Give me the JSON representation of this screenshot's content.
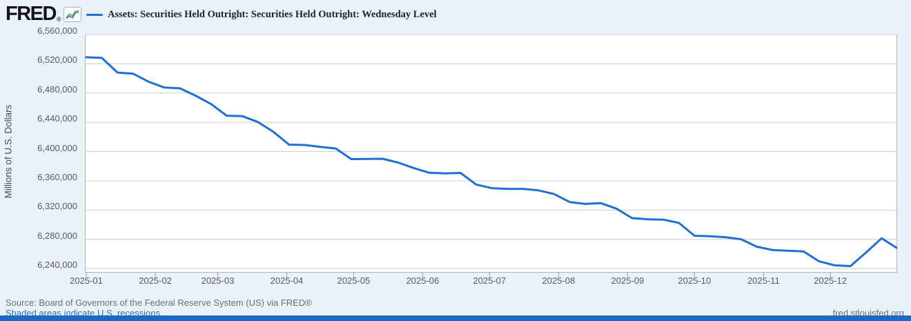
{
  "header": {
    "logo_text": "FRED",
    "logo_reg": "®",
    "legend_label": "Assets: Securities Held Outright: Securities Held Outright: Wednesday Level"
  },
  "footer": {
    "source_line": "Source: Board of Governors of the Federal Reserve System (US) via FRED®",
    "recession_note": "Shaded areas indicate U.S. recessions.",
    "site_url": "fred.stlouisfed.org"
  },
  "colors": {
    "page_background": "#e9f1fa",
    "plot_background": "#ffffff",
    "gridline": "#cccccc",
    "plot_border": "#b3b3b3",
    "tick": "#999999",
    "series_line": "#1e6fd6",
    "link_blue": "#2c6fc4",
    "bottom_bar": "#1d68c5"
  },
  "chart_data": {
    "type": "line",
    "title": "Assets: Securities Held Outright: Securities Held Outright: Wednesday Level",
    "xlabel": "",
    "ylabel": "Millions of U.S. Dollars",
    "grid": true,
    "legend_position": "top-left",
    "frequency": "weekly (Wednesday level)",
    "ylim": [
      6234500,
      6560000
    ],
    "y_ticks": [
      6560000,
      6520000,
      6480000,
      6440000,
      6400000,
      6360000,
      6320000,
      6280000,
      6240000
    ],
    "y_tick_labels": [
      "6,560,000",
      "6,520,000",
      "6,480,000",
      "6,440,000",
      "6,400,000",
      "6,360,000",
      "6,320,000",
      "6,280,000",
      "6,240,000"
    ],
    "x_range": [
      "2025-01-01",
      "2025-12-31"
    ],
    "x_tick_labels": [
      "2025-01",
      "2025-02",
      "2025-03",
      "2025-04",
      "2025-05",
      "2025-06",
      "2025-07",
      "2025-08",
      "2025-09",
      "2025-10",
      "2025-11",
      "2025-12"
    ],
    "x_tick_dates": [
      "2025-01-01",
      "2025-02-01",
      "2025-03-01",
      "2025-04-01",
      "2025-05-01",
      "2025-06-01",
      "2025-07-01",
      "2025-08-01",
      "2025-09-01",
      "2025-10-01",
      "2025-11-01",
      "2025-12-01"
    ],
    "series": [
      {
        "name": "Assets: Securities Held Outright: Securities Held Outright: Wednesday Level",
        "color": "#1e6fd6",
        "dates": [
          "2025-01-01",
          "2025-01-08",
          "2025-01-15",
          "2025-01-22",
          "2025-01-29",
          "2025-02-05",
          "2025-02-12",
          "2025-02-19",
          "2025-02-26",
          "2025-03-05",
          "2025-03-12",
          "2025-03-19",
          "2025-03-26",
          "2025-04-02",
          "2025-04-09",
          "2025-04-16",
          "2025-04-23",
          "2025-04-30",
          "2025-05-07",
          "2025-05-14",
          "2025-05-21",
          "2025-05-28",
          "2025-06-04",
          "2025-06-11",
          "2025-06-18",
          "2025-06-25",
          "2025-07-02",
          "2025-07-09",
          "2025-07-16",
          "2025-07-23",
          "2025-07-30",
          "2025-08-06",
          "2025-08-13",
          "2025-08-20",
          "2025-08-27",
          "2025-09-03",
          "2025-09-10",
          "2025-09-17",
          "2025-09-24",
          "2025-10-01",
          "2025-10-08",
          "2025-10-15",
          "2025-10-22",
          "2025-10-29",
          "2025-11-05",
          "2025-11-12",
          "2025-11-19",
          "2025-11-26",
          "2025-12-03",
          "2025-12-10",
          "2025-12-17",
          "2025-12-24",
          "2025-12-31"
        ],
        "values": [
          6529000,
          6528000,
          6508000,
          6506500,
          6495500,
          6487500,
          6486500,
          6476500,
          6465000,
          6449000,
          6448500,
          6440500,
          6427000,
          6409500,
          6409000,
          6406500,
          6404200,
          6389700,
          6390000,
          6390200,
          6385000,
          6377500,
          6371000,
          6370300,
          6370800,
          6355000,
          6350000,
          6349000,
          6349000,
          6347000,
          6342000,
          6331000,
          6328500,
          6329500,
          6322000,
          6309000,
          6307500,
          6307000,
          6302500,
          6285000,
          6284300,
          6283000,
          6280200,
          6270000,
          6265500,
          6264500,
          6263500,
          6250000,
          6244500,
          6243500,
          6262000,
          6281500,
          6268000
        ]
      }
    ]
  }
}
